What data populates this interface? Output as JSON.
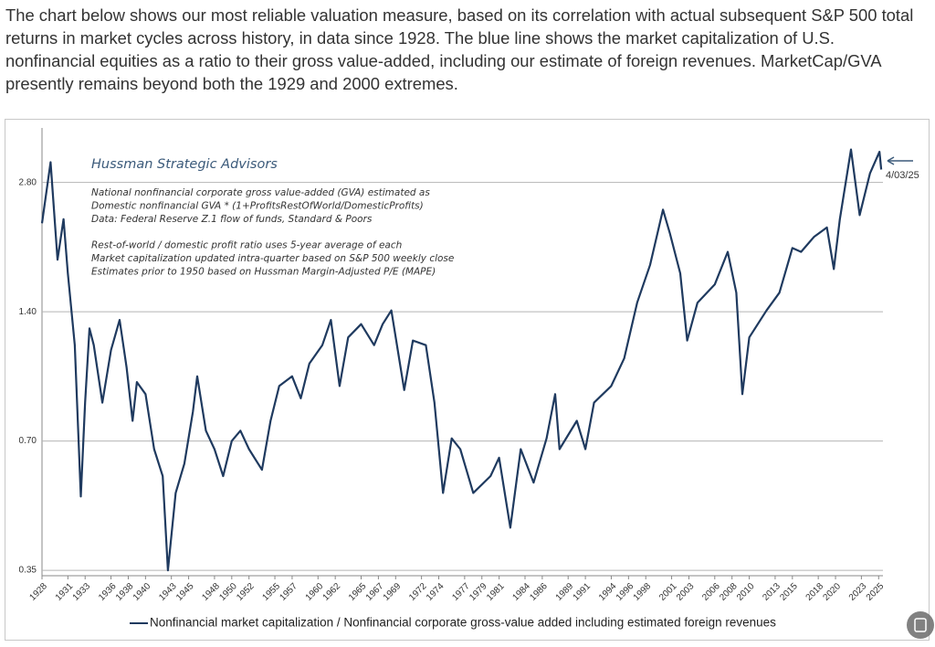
{
  "intro": "The chart below shows our most reliable valuation measure, based on its correlation with actual subsequent S&P 500 total returns in market cycles across history, in data since 1928. The blue line shows the market capitalization of U.S. nonfinancial equities as a ratio to their gross value-added, including our estimate of foreign revenues. MarketCap/GVA presently remains beyond both the 1929 and 2000 extremes.",
  "chart_data": {
    "type": "line",
    "title": "Hussman Strategic Advisors",
    "notes": [
      "National nonfinancial corporate gross value-added (GVA) estimated as",
      "Domestic nonfinancial GVA * (1+ProfitsRestOfWorld/DomesticProfits)",
      "Data: Federal Reserve Z.1 flow of funds, Standard & Poors",
      "Rest-of-world / domestic profit ratio uses 5-year average of each",
      "Market capitalization updated intra-quarter based on S&P 500 weekly close",
      "Estimates prior to 1950 based on Hussman Margin-Adjusted P/E (MAPE)"
    ],
    "annotation": "4/03/25",
    "log_y": true,
    "grid": true,
    "xlim": [
      1928,
      2025.5
    ],
    "ylim": [
      0.34,
      3.75
    ],
    "yticks": [
      {
        "value": 0.35,
        "label": "0.35"
      },
      {
        "value": 0.7,
        "label": "0.70"
      },
      {
        "value": 1.4,
        "label": "1.40"
      },
      {
        "value": 2.8,
        "label": "2.80"
      }
    ],
    "xticks": [
      1928,
      1931,
      1933,
      1936,
      1938,
      1940,
      1943,
      1945,
      1948,
      1950,
      1952,
      1955,
      1957,
      1960,
      1962,
      1965,
      1967,
      1969,
      1972,
      1974,
      1977,
      1979,
      1981,
      1984,
      1986,
      1989,
      1991,
      1994,
      1996,
      1998,
      2001,
      2003,
      2006,
      2008,
      2010,
      2013,
      2015,
      2018,
      2020,
      2023,
      2025
    ],
    "x": [
      1928.0,
      1929.0,
      1929.8,
      1930.5,
      1931.0,
      1931.8,
      1932.5,
      1933.0,
      1933.5,
      1934.0,
      1935.0,
      1936.0,
      1937.0,
      1937.8,
      1938.5,
      1939.0,
      1940.0,
      1941.0,
      1942.0,
      1942.6,
      1943.5,
      1944.5,
      1945.5,
      1946.0,
      1947.0,
      1948.0,
      1949.0,
      1950.0,
      1951.0,
      1952.0,
      1953.5,
      1954.5,
      1955.5,
      1957.0,
      1958.0,
      1959.0,
      1960.5,
      1961.5,
      1962.5,
      1963.5,
      1965.0,
      1966.5,
      1967.5,
      1968.5,
      1970.0,
      1971.0,
      1972.5,
      1973.5,
      1974.5,
      1975.5,
      1976.5,
      1978.0,
      1980.0,
      1981.0,
      1982.3,
      1983.5,
      1985.0,
      1986.5,
      1987.5,
      1988.0,
      1990.0,
      1991.0,
      1992.0,
      1994.0,
      1995.5,
      1997.0,
      1998.5,
      2000.0,
      2000.8,
      2002.0,
      2002.8,
      2004.0,
      2006.0,
      2007.5,
      2008.5,
      2009.2,
      2010.0,
      2012.0,
      2013.5,
      2015.0,
      2016.0,
      2017.5,
      2019.0,
      2019.8,
      2020.5,
      2021.8,
      2022.8,
      2024.0,
      2025.1,
      2025.3
    ],
    "series": [
      {
        "name": "Nonfinancial market capitalization / Nonfinancial corporate gross-value added including estimated foreign revenues",
        "color": "#1f3a5f",
        "values": [
          2.25,
          3.12,
          1.85,
          2.3,
          1.72,
          1.17,
          0.52,
          0.86,
          1.28,
          1.17,
          0.86,
          1.14,
          1.34,
          1.04,
          0.78,
          0.96,
          0.9,
          0.67,
          0.58,
          0.35,
          0.53,
          0.62,
          0.82,
          0.99,
          0.74,
          0.67,
          0.58,
          0.7,
          0.74,
          0.67,
          0.6,
          0.78,
          0.94,
          0.99,
          0.88,
          1.06,
          1.17,
          1.34,
          0.94,
          1.22,
          1.31,
          1.17,
          1.31,
          1.41,
          0.92,
          1.2,
          1.17,
          0.86,
          0.53,
          0.71,
          0.67,
          0.53,
          0.58,
          0.64,
          0.44,
          0.67,
          0.56,
          0.71,
          0.9,
          0.67,
          0.78,
          0.67,
          0.86,
          0.94,
          1.09,
          1.47,
          1.8,
          2.42,
          2.13,
          1.72,
          1.2,
          1.47,
          1.62,
          1.93,
          1.55,
          0.9,
          1.22,
          1.41,
          1.55,
          1.97,
          1.93,
          2.09,
          2.2,
          1.76,
          2.3,
          3.34,
          2.35,
          2.94,
          3.3,
          3.0
        ]
      }
    ]
  }
}
